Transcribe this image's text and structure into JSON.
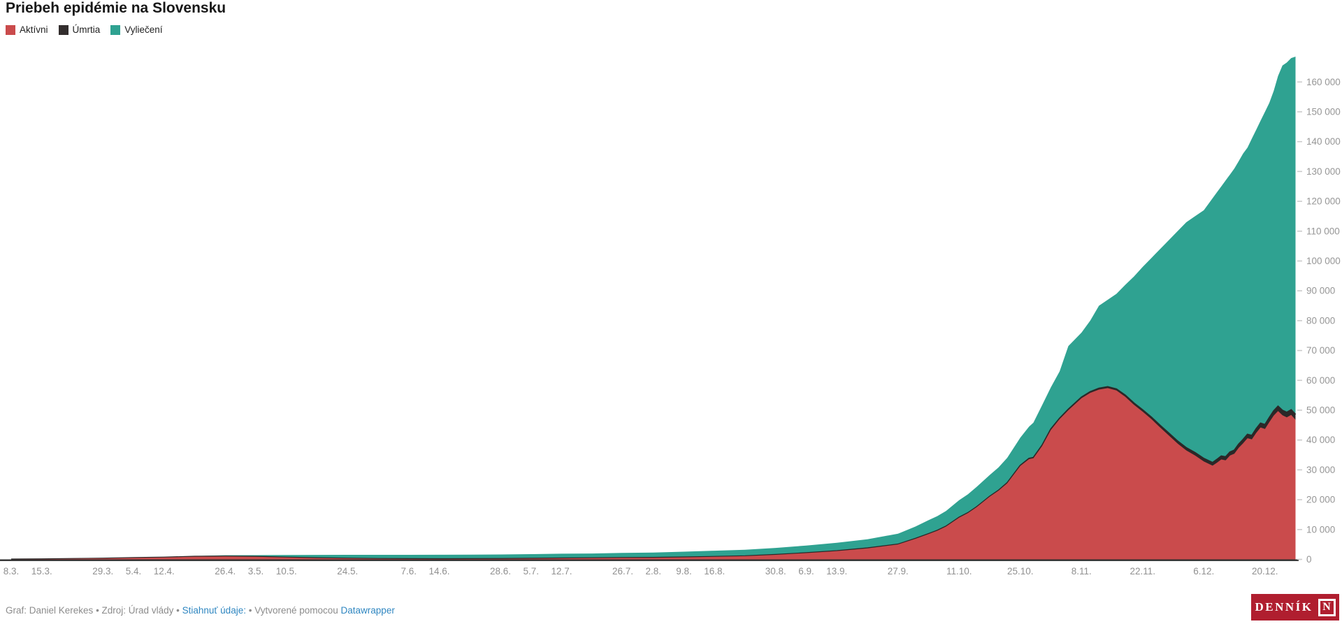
{
  "title": "Priebeh epidémie na Slovensku",
  "legend": {
    "items": [
      {
        "id": "aktivni",
        "label": "Aktívni",
        "color": "#ca4b4c"
      },
      {
        "id": "umrtia",
        "label": "Úmrtia",
        "color": "#332e2e"
      },
      {
        "id": "vylieceni",
        "label": "Vyliečení",
        "color": "#2fa291"
      }
    ]
  },
  "footer": {
    "credit": "Graf: Daniel Kerekes",
    "sep1": " • ",
    "source": "Zdroj: Úrad vlády",
    "sep2": " • ",
    "download_link": "Stiahnuť údaje:",
    "sep3": " • ",
    "created_with": "Vytvorené pomocou ",
    "tool_link": "Datawrapper",
    "link_color": "#3087c1"
  },
  "logo": {
    "text": "DENNÍK",
    "n": "N",
    "bg_color": "#b01e2f"
  },
  "chart_data": {
    "type": "area",
    "stacked": true,
    "title": "Priebeh epidémie na Slovensku",
    "xlabel": "",
    "ylabel": "",
    "ylim": [
      0,
      172000
    ],
    "grid": false,
    "legend_position": "top-left",
    "series_order_bottom_to_top": [
      "Aktívni",
      "Úmrtia",
      "Vyliečení"
    ],
    "colors": {
      "aktivni": "#ca4b4c",
      "umrtia": "#2b2828",
      "vylieceni": "#2fa291"
    },
    "axis_color": "#2f2f2f",
    "tick_label_color": "#969696",
    "x_ticks": [
      {
        "label": "8.3.",
        "day": 0
      },
      {
        "label": "15.3.",
        "day": 7
      },
      {
        "label": "29.3.",
        "day": 21
      },
      {
        "label": "5.4.",
        "day": 28
      },
      {
        "label": "12.4.",
        "day": 35
      },
      {
        "label": "26.4.",
        "day": 49
      },
      {
        "label": "3.5.",
        "day": 56
      },
      {
        "label": "10.5.",
        "day": 63
      },
      {
        "label": "24.5.",
        "day": 77
      },
      {
        "label": "7.6.",
        "day": 91
      },
      {
        "label": "14.6.",
        "day": 98
      },
      {
        "label": "28.6.",
        "day": 112
      },
      {
        "label": "5.7.",
        "day": 119
      },
      {
        "label": "12.7.",
        "day": 126
      },
      {
        "label": "26.7.",
        "day": 140
      },
      {
        "label": "2.8.",
        "day": 147
      },
      {
        "label": "9.8.",
        "day": 154
      },
      {
        "label": "16.8.",
        "day": 161
      },
      {
        "label": "30.8.",
        "day": 175
      },
      {
        "label": "6.9.",
        "day": 182
      },
      {
        "label": "13.9.",
        "day": 189
      },
      {
        "label": "27.9.",
        "day": 203
      },
      {
        "label": "11.10.",
        "day": 217
      },
      {
        "label": "25.10.",
        "day": 231
      },
      {
        "label": "8.11.",
        "day": 245
      },
      {
        "label": "22.11.",
        "day": 259
      },
      {
        "label": "6.12.",
        "day": 273
      },
      {
        "label": "20.12.",
        "day": 287
      }
    ],
    "y_ticks": [
      {
        "label": "0",
        "value": 0
      },
      {
        "label": "10 000",
        "value": 10000
      },
      {
        "label": "20 000",
        "value": 20000
      },
      {
        "label": "30 000",
        "value": 30000
      },
      {
        "label": "40 000",
        "value": 40000
      },
      {
        "label": "50 000",
        "value": 50000
      },
      {
        "label": "60 000",
        "value": 60000
      },
      {
        "label": "70 000",
        "value": 70000
      },
      {
        "label": "80 000",
        "value": 80000
      },
      {
        "label": "90 000",
        "value": 90000
      },
      {
        "label": "100 000",
        "value": 100000
      },
      {
        "label": "110 000",
        "value": 110000
      },
      {
        "label": "120 000",
        "value": 120000
      },
      {
        "label": "130 000",
        "value": 130000
      },
      {
        "label": "140 000",
        "value": 140000
      },
      {
        "label": "150 000",
        "value": 150000
      },
      {
        "label": "160 000",
        "value": 160000
      }
    ],
    "points": [
      {
        "day": 0,
        "active": 5,
        "deaths": 0,
        "recovered": 0
      },
      {
        "day": 7,
        "active": 61,
        "deaths": 0,
        "recovered": 0
      },
      {
        "day": 14,
        "active": 178,
        "deaths": 1,
        "recovered": 6
      },
      {
        "day": 21,
        "active": 300,
        "deaths": 1,
        "recovered": 13
      },
      {
        "day": 28,
        "active": 500,
        "deaths": 2,
        "recovered": 32
      },
      {
        "day": 35,
        "active": 665,
        "deaths": 2,
        "recovered": 75
      },
      {
        "day": 42,
        "active": 920,
        "deaths": 9,
        "recovered": 160
      },
      {
        "day": 49,
        "active": 1000,
        "deaths": 14,
        "recovered": 367
      },
      {
        "day": 56,
        "active": 880,
        "deaths": 23,
        "recovered": 510
      },
      {
        "day": 63,
        "active": 640,
        "deaths": 26,
        "recovered": 791
      },
      {
        "day": 70,
        "active": 420,
        "deaths": 28,
        "recovered": 1047
      },
      {
        "day": 77,
        "active": 270,
        "deaths": 28,
        "recovered": 1213
      },
      {
        "day": 84,
        "active": 160,
        "deaths": 28,
        "recovered": 1333
      },
      {
        "day": 91,
        "active": 115,
        "deaths": 28,
        "recovered": 1388
      },
      {
        "day": 98,
        "active": 100,
        "deaths": 28,
        "recovered": 1417
      },
      {
        "day": 105,
        "active": 120,
        "deaths": 28,
        "recovered": 1441
      },
      {
        "day": 112,
        "active": 150,
        "deaths": 28,
        "recovered": 1465
      },
      {
        "day": 119,
        "active": 240,
        "deaths": 28,
        "recovered": 1496
      },
      {
        "day": 126,
        "active": 330,
        "deaths": 28,
        "recovered": 1544
      },
      {
        "day": 133,
        "active": 390,
        "deaths": 28,
        "recovered": 1558
      },
      {
        "day": 140,
        "active": 490,
        "deaths": 28,
        "recovered": 1661
      },
      {
        "day": 147,
        "active": 540,
        "deaths": 29,
        "recovered": 1723
      },
      {
        "day": 154,
        "active": 680,
        "deaths": 31,
        "recovered": 1855
      },
      {
        "day": 161,
        "active": 870,
        "deaths": 31,
        "recovered": 2001
      },
      {
        "day": 168,
        "active": 1070,
        "deaths": 33,
        "recovered": 2122
      },
      {
        "day": 175,
        "active": 1520,
        "deaths": 33,
        "recovered": 2289
      },
      {
        "day": 182,
        "active": 2100,
        "deaths": 37,
        "recovered": 2499
      },
      {
        "day": 189,
        "active": 2780,
        "deaths": 38,
        "recovered": 2762
      },
      {
        "day": 196,
        "active": 3700,
        "deaths": 39,
        "recovered": 3017
      },
      {
        "day": 203,
        "active": 5000,
        "deaths": 44,
        "recovered": 3556
      },
      {
        "day": 207,
        "active": 6900,
        "deaths": 50,
        "recovered": 4050
      },
      {
        "day": 210,
        "active": 8500,
        "deaths": 55,
        "recovered": 4584
      },
      {
        "day": 212,
        "active": 9600,
        "deaths": 57,
        "recovered": 4843
      },
      {
        "day": 214,
        "active": 11000,
        "deaths": 58,
        "recovered": 5142
      },
      {
        "day": 217,
        "active": 14000,
        "deaths": 61,
        "recovered": 5790
      },
      {
        "day": 219,
        "active": 15500,
        "deaths": 66,
        "recovered": 6234
      },
      {
        "day": 221,
        "active": 17500,
        "deaths": 71,
        "recovered": 6729
      },
      {
        "day": 224,
        "active": 21000,
        "deaths": 83,
        "recovered": 7185
      },
      {
        "day": 226,
        "active": 23000,
        "deaths": 95,
        "recovered": 7705
      },
      {
        "day": 228,
        "active": 25500,
        "deaths": 110,
        "recovered": 8390
      },
      {
        "day": 231,
        "active": 31300,
        "deaths": 179,
        "recovered": 9321
      },
      {
        "day": 233,
        "active": 33600,
        "deaths": 200,
        "recovered": 10700
      },
      {
        "day": 234,
        "active": 33900,
        "deaths": 210,
        "recovered": 11690
      },
      {
        "day": 236,
        "active": 38000,
        "deaths": 230,
        "recovered": 13470
      },
      {
        "day": 238,
        "active": 43400,
        "deaths": 250,
        "recovered": 14014
      },
      {
        "day": 240,
        "active": 47000,
        "deaths": 270,
        "recovered": 15730
      },
      {
        "day": 242,
        "active": 50000,
        "deaths": 290,
        "recovered": 21210
      },
      {
        "day": 245,
        "active": 54000,
        "deaths": 332,
        "recovered": 21668
      },
      {
        "day": 247,
        "active": 55800,
        "deaths": 370,
        "recovered": 23830
      },
      {
        "day": 249,
        "active": 56900,
        "deaths": 400,
        "recovered": 27700
      },
      {
        "day": 251,
        "active": 57400,
        "deaths": 430,
        "recovered": 29170
      },
      {
        "day": 253,
        "active": 56600,
        "deaths": 460,
        "recovered": 31940
      },
      {
        "day": 255,
        "active": 54500,
        "deaths": 500,
        "recovered": 37000
      },
      {
        "day": 257,
        "active": 51800,
        "deaths": 540,
        "recovered": 42460
      },
      {
        "day": 259,
        "active": 49500,
        "deaths": 581,
        "recovered": 47919
      },
      {
        "day": 261,
        "active": 47000,
        "deaths": 620,
        "recovered": 53380
      },
      {
        "day": 263,
        "active": 44200,
        "deaths": 680,
        "recovered": 59120
      },
      {
        "day": 265,
        "active": 41500,
        "deaths": 740,
        "recovered": 64760
      },
      {
        "day": 267,
        "active": 38800,
        "deaths": 800,
        "recovered": 70400
      },
      {
        "day": 269,
        "active": 36500,
        "deaths": 860,
        "recovered": 75640
      },
      {
        "day": 271,
        "active": 34800,
        "deaths": 920,
        "recovered": 79280
      },
      {
        "day": 273,
        "active": 32800,
        "deaths": 977,
        "recovered": 83223
      },
      {
        "day": 275,
        "active": 31400,
        "deaths": 1020,
        "recovered": 88580
      },
      {
        "day": 276,
        "active": 32400,
        "deaths": 1050,
        "recovered": 89550
      },
      {
        "day": 277,
        "active": 33500,
        "deaths": 1080,
        "recovered": 90420
      },
      {
        "day": 278,
        "active": 33200,
        "deaths": 1100,
        "recovered": 92700
      },
      {
        "day": 279,
        "active": 34800,
        "deaths": 1130,
        "recovered": 93070
      },
      {
        "day": 280,
        "active": 35400,
        "deaths": 1160,
        "recovered": 94440
      },
      {
        "day": 281,
        "active": 37400,
        "deaths": 1190,
        "recovered": 94910
      },
      {
        "day": 282,
        "active": 38900,
        "deaths": 1230,
        "recovered": 95870
      },
      {
        "day": 283,
        "active": 40600,
        "deaths": 1270,
        "recovered": 96130
      },
      {
        "day": 284,
        "active": 40200,
        "deaths": 1310,
        "recovered": 99490
      },
      {
        "day": 285,
        "active": 42400,
        "deaths": 1350,
        "recovered": 100250
      },
      {
        "day": 286,
        "active": 44200,
        "deaths": 1390,
        "recovered": 101410
      },
      {
        "day": 287,
        "active": 43700,
        "deaths": 1430,
        "recovered": 104870
      },
      {
        "day": 288,
        "active": 46000,
        "deaths": 1470,
        "recovered": 105530
      },
      {
        "day": 289,
        "active": 48200,
        "deaths": 1510,
        "recovered": 107290
      },
      {
        "day": 290,
        "active": 49700,
        "deaths": 1560,
        "recovered": 110740
      },
      {
        "day": 291,
        "active": 48300,
        "deaths": 1610,
        "recovered": 115590
      },
      {
        "day": 292,
        "active": 47600,
        "deaths": 1660,
        "recovered": 117240
      },
      {
        "day": 293,
        "active": 48400,
        "deaths": 1700,
        "recovered": 117900
      },
      {
        "day": 294,
        "active": 46800,
        "deaths": 1750,
        "recovered": 119950
      }
    ]
  }
}
